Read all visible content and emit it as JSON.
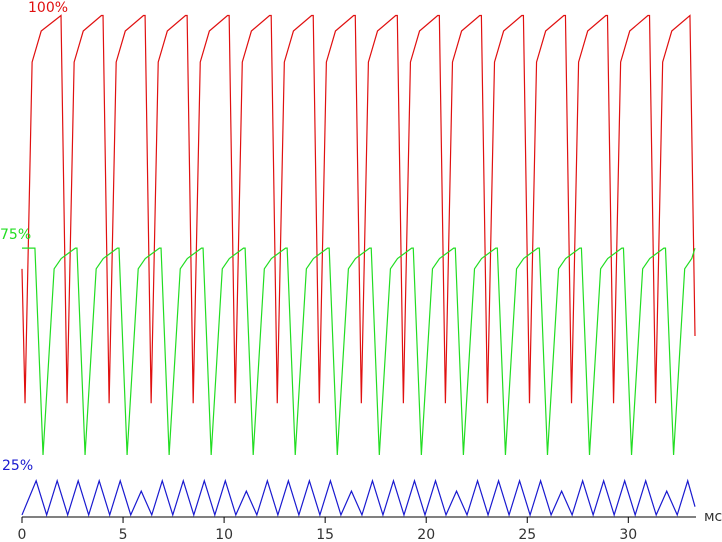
{
  "chart_data": {
    "type": "line",
    "x_label": "мс",
    "xlim": [
      0,
      33.3
    ],
    "xticks": [
      0,
      5,
      10,
      15,
      20,
      25,
      30
    ],
    "ylim": [
      0,
      100
    ],
    "series": [
      {
        "name": "100%",
        "color": "#e01010",
        "x": [
          0,
          0.15,
          0.5,
          0.95,
          1.93,
          2.23,
          2.58,
          3.03,
          3.93,
          4.01,
          4.31,
          4.66,
          5.11,
          6.01,
          6.09,
          6.39,
          6.74,
          7.19,
          8.09,
          8.17,
          8.47,
          8.82,
          9.27,
          10.17,
          10.25,
          10.55,
          10.9,
          11.35,
          12.25,
          12.33,
          12.63,
          12.98,
          13.43,
          14.33,
          14.41,
          14.71,
          15.06,
          15.51,
          16.41,
          16.49,
          16.79,
          17.14,
          17.59,
          18.49,
          18.57,
          18.87,
          19.22,
          19.67,
          20.57,
          20.65,
          20.95,
          21.3,
          21.75,
          22.65,
          22.73,
          23.03,
          23.38,
          23.83,
          24.73,
          24.81,
          25.11,
          25.46,
          25.91,
          26.81,
          26.89,
          27.19,
          27.54,
          27.99,
          28.89,
          28.97,
          29.27,
          29.62,
          30.07,
          30.97,
          31.05,
          31.35,
          31.7,
          32.15,
          33.05,
          33.3
        ],
        "values": [
          48,
          22,
          88,
          94,
          97,
          22,
          88,
          94,
          97,
          97,
          22,
          88,
          94,
          97,
          97,
          22,
          88,
          94,
          97,
          97,
          22,
          88,
          94,
          97,
          97,
          22,
          88,
          94,
          97,
          97,
          22,
          88,
          94,
          97,
          97,
          22,
          88,
          94,
          97,
          97,
          22,
          88,
          94,
          97,
          97,
          22,
          88,
          94,
          97,
          97,
          22,
          88,
          94,
          97,
          97,
          22,
          88,
          94,
          97,
          97,
          22,
          88,
          94,
          97,
          97,
          22,
          88,
          94,
          97,
          97,
          22,
          88,
          94,
          97,
          97,
          22,
          88,
          94,
          97,
          35
        ]
      },
      {
        "name": "75%",
        "color": "#22dd22",
        "x": [
          0,
          0.64,
          1.04,
          1.59,
          1.94,
          2.64,
          2.72,
          3.12,
          3.67,
          4.02,
          4.72,
          4.8,
          5.2,
          5.75,
          6.1,
          6.8,
          6.88,
          7.28,
          7.83,
          8.18,
          8.88,
          8.96,
          9.36,
          9.91,
          10.26,
          10.96,
          11.04,
          11.44,
          11.99,
          12.34,
          13.04,
          13.12,
          13.52,
          14.07,
          14.42,
          15.12,
          15.2,
          15.6,
          16.15,
          16.5,
          17.2,
          17.28,
          17.68,
          18.23,
          18.58,
          19.28,
          19.36,
          19.76,
          20.31,
          20.66,
          21.36,
          21.44,
          21.84,
          22.39,
          22.74,
          23.44,
          23.52,
          23.92,
          24.47,
          24.82,
          25.52,
          25.6,
          26.0,
          26.55,
          26.9,
          27.6,
          27.68,
          28.08,
          28.63,
          28.98,
          29.68,
          29.76,
          30.16,
          30.71,
          31.06,
          31.76,
          31.84,
          32.24,
          32.79,
          33.14,
          33.3
        ],
        "values": [
          52,
          52,
          12,
          48,
          50,
          52,
          52,
          12,
          48,
          50,
          52,
          52,
          12,
          48,
          50,
          52,
          52,
          12,
          48,
          50,
          52,
          52,
          12,
          48,
          50,
          52,
          52,
          12,
          48,
          50,
          52,
          52,
          12,
          48,
          50,
          52,
          52,
          12,
          48,
          50,
          52,
          52,
          12,
          48,
          50,
          52,
          52,
          12,
          48,
          50,
          52,
          52,
          12,
          48,
          50,
          52,
          52,
          12,
          48,
          50,
          52,
          52,
          12,
          48,
          50,
          52,
          52,
          12,
          48,
          50,
          52,
          52,
          12,
          48,
          50,
          52,
          52,
          12,
          48,
          50,
          52
        ]
      },
      {
        "name": "25%",
        "color": "#1a1ad0",
        "x": [
          0,
          0.7,
          1.22,
          1.74,
          2.26,
          2.78,
          3.3,
          3.82,
          4.34,
          4.86,
          5.38,
          5.9,
          6.42,
          6.94,
          7.46,
          7.98,
          8.5,
          9.02,
          9.54,
          10.06,
          10.58,
          11.1,
          11.62,
          12.14,
          12.66,
          13.18,
          13.7,
          14.22,
          14.74,
          15.26,
          15.78,
          16.3,
          16.82,
          17.34,
          17.86,
          18.38,
          18.9,
          19.42,
          19.94,
          20.46,
          20.98,
          21.5,
          22.02,
          22.54,
          23.06,
          23.58,
          24.1,
          24.62,
          25.14,
          25.66,
          26.18,
          26.7,
          27.22,
          27.74,
          28.26,
          28.78,
          29.3,
          29.82,
          30.34,
          30.86,
          31.38,
          31.9,
          32.42,
          32.94,
          33.3
        ],
        "values": [
          0.4,
          7,
          0.4,
          7,
          0.4,
          7,
          0.4,
          7,
          0.4,
          7,
          0.4,
          5,
          0.4,
          7,
          0.4,
          7,
          0.4,
          7,
          0.4,
          7,
          0.4,
          5,
          0.4,
          7,
          0.4,
          7,
          0.4,
          7,
          0.4,
          7,
          0.4,
          5,
          0.4,
          7,
          0.4,
          7,
          0.4,
          7,
          0.4,
          7,
          0.4,
          5,
          0.4,
          7,
          0.4,
          7,
          0.4,
          7,
          0.4,
          7,
          0.4,
          5,
          0.4,
          7,
          0.4,
          7,
          0.4,
          7,
          0.4,
          7,
          0.4,
          5,
          0.4,
          7,
          2
        ]
      }
    ]
  }
}
